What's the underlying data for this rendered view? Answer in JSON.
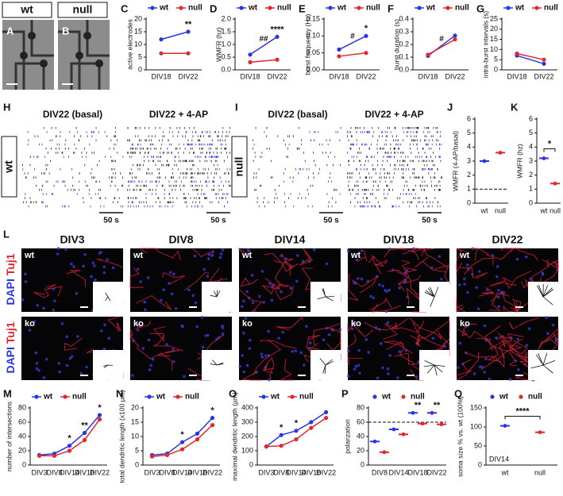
{
  "header": {
    "panel_a": "A",
    "label_a": "wt",
    "panel_b": "B",
    "label_b": "null"
  },
  "rasters": [
    {
      "panel": "H",
      "genotype": "wt",
      "left_title": "DIV22  (basal)",
      "right_title": "DIV22 + 4-AP",
      "scale_left": "50 s",
      "scale_right": "50 s"
    },
    {
      "panel": "I",
      "genotype": "null",
      "left_title": "DIV22  (basal)",
      "right_title": "DIV22 + 4-AP",
      "scale_left": "50 s",
      "scale_right": "50 s"
    }
  ],
  "morphology": {
    "panel": "L",
    "stain_blue": "DAPI",
    "stain_red": "Tuj1",
    "columns": [
      "DIV3",
      "DIV8",
      "DIV14",
      "DIV18",
      "DIV22"
    ],
    "rows": [
      "wt",
      "ko"
    ]
  },
  "chart_data": [
    {
      "type": "line",
      "panel": "C",
      "ylabel": "active electrodes",
      "categories": [
        "DIV18",
        "DIV22"
      ],
      "series": [
        {
          "name": "wt",
          "color": "#2a35e6",
          "values": [
            12,
            15
          ]
        },
        {
          "name": "null",
          "color": "#e5262f",
          "values": [
            6.5,
            6.5
          ]
        }
      ],
      "ylim": [
        0,
        20
      ],
      "yticks": [
        0,
        5,
        10,
        15,
        20
      ],
      "annotations": [
        null,
        "**"
      ],
      "legend": true
    },
    {
      "type": "line",
      "panel": "D",
      "ylabel": "WMFR (hz)",
      "categories": [
        "DIV18",
        "DIV22"
      ],
      "series": [
        {
          "name": "wt",
          "color": "#2a35e6",
          "values": [
            0.6,
            1.3
          ]
        },
        {
          "name": "null",
          "color": "#e5262f",
          "values": [
            0.3,
            0.4
          ]
        }
      ],
      "ylim": [
        0,
        2
      ],
      "yticks": [
        {
          "value": 0,
          "label": "0.0"
        },
        0.5,
        {
          "value": 1,
          "label": "1.0"
        },
        1.5,
        {
          "value": 2,
          "label": "2.0"
        }
      ],
      "annotations": [
        null,
        "****"
      ],
      "trend_annotation": "##",
      "legend": true
    },
    {
      "type": "line",
      "panel": "E",
      "ylabel": "burst frequency (Hz)",
      "categories": [
        "DIV18",
        "DIV22"
      ],
      "series": [
        {
          "name": "wt",
          "color": "#2a35e6",
          "values": [
            0.06,
            0.1
          ]
        },
        {
          "name": "null",
          "color": "#e5262f",
          "values": [
            0.04,
            0.05
          ]
        }
      ],
      "ylim": [
        0,
        0.15
      ],
      "yticks": [
        {
          "value": 0,
          "label": "0.00"
        },
        0.05,
        {
          "value": 0.1,
          "label": "0.10"
        },
        0.15
      ],
      "annotations": [
        null,
        "*"
      ],
      "trend_annotation": "#",
      "legend": true
    },
    {
      "type": "line",
      "panel": "F",
      "ylabel": "burst duration (s)",
      "categories": [
        "DIV18",
        "DIV22"
      ],
      "series": [
        {
          "name": "wt",
          "color": "#2a35e6",
          "values": [
            0.11,
            0.27
          ]
        },
        {
          "name": "null",
          "color": "#e5262f",
          "values": [
            0.12,
            0.24
          ]
        }
      ],
      "ylim": [
        0,
        0.4
      ],
      "yticks": [
        {
          "value": 0,
          "label": "0.0"
        },
        0.1,
        0.2,
        0.3,
        0.4
      ],
      "trend_annotation": "#",
      "legend": true
    },
    {
      "type": "line",
      "panel": "G",
      "ylabel": "intra-burst intervals (s)",
      "categories": [
        "DIV18",
        "DIV22"
      ],
      "series": [
        {
          "name": "wt",
          "color": "#2a35e6",
          "values": [
            7,
            3
          ]
        },
        {
          "name": "null",
          "color": "#e5262f",
          "values": [
            8,
            5
          ]
        }
      ],
      "ylim": [
        0,
        25
      ],
      "yticks": [
        0,
        5,
        10,
        15,
        20,
        25
      ],
      "legend": true
    },
    {
      "type": "dot",
      "panel": "J",
      "ylabel": "WMFR (4-AP/basal)",
      "categories": [
        "wt",
        "null"
      ],
      "series": [
        {
          "name": "wt",
          "color": "#2a35e6",
          "values": [
            3.0,
            null
          ]
        },
        {
          "name": "null",
          "color": "#e5262f",
          "values": [
            null,
            3.6
          ]
        }
      ],
      "ylim": [
        0,
        6
      ],
      "yticks": [
        0,
        1,
        2,
        3,
        4,
        5,
        6
      ],
      "ref_line": 1,
      "legend": false
    },
    {
      "type": "dot",
      "panel": "K",
      "ylabel": "WMFR (hz)",
      "categories": [
        "wt",
        "null"
      ],
      "series": [
        {
          "name": "wt",
          "color": "#2a35e6",
          "values": [
            3.2,
            null
          ]
        },
        {
          "name": "null",
          "color": "#e5262f",
          "values": [
            null,
            1.4
          ]
        }
      ],
      "ylim": [
        0,
        6
      ],
      "yticks": [
        0,
        1,
        2,
        3,
        4,
        5,
        6
      ],
      "bracket_annotation": "*",
      "legend": false
    },
    {
      "type": "line",
      "panel": "M",
      "ylabel": "number of intersections",
      "categories": [
        "DIV3",
        "DIV8",
        "DIV14",
        "DIV18",
        "DIV22"
      ],
      "series": [
        {
          "name": "wt",
          "color": "#2a35e6",
          "values": [
            14,
            16,
            27,
            45,
            70
          ]
        },
        {
          "name": "null",
          "color": "#e5262f",
          "values": [
            13,
            13,
            20,
            35,
            64
          ]
        }
      ],
      "ylim": [
        0,
        80
      ],
      "yticks": [
        0,
        20,
        40,
        60,
        80
      ],
      "annotations": [
        null,
        null,
        "*",
        "**",
        "*"
      ],
      "legend": true
    },
    {
      "type": "line",
      "panel": "N",
      "ylabel": "total dendritic length (x100 µm)",
      "categories": [
        "DIV3",
        "DIV8",
        "DIV14",
        "DIV18",
        "DIV22"
      ],
      "series": [
        {
          "name": "wt",
          "color": "#2a35e6",
          "values": [
            3.5,
            4,
            8,
            11,
            16.5
          ]
        },
        {
          "name": "null",
          "color": "#e5262f",
          "values": [
            3,
            3.5,
            5.5,
            9,
            14
          ]
        }
      ],
      "ylim": [
        0,
        20
      ],
      "yticks": [
        0,
        5,
        10,
        15,
        20
      ],
      "annotations": [
        null,
        null,
        "*",
        null,
        "*"
      ],
      "legend": true
    },
    {
      "type": "line",
      "panel": "O",
      "ylabel": "maximal dendritic length (µm)",
      "categories": [
        "DIV3",
        "DIV8",
        "DIV14",
        "DIV18",
        "DIV22"
      ],
      "series": [
        {
          "name": "wt",
          "color": "#2a35e6",
          "values": [
            130,
            210,
            240,
            300,
            370
          ]
        },
        {
          "name": "null",
          "color": "#e5262f",
          "values": [
            130,
            135,
            180,
            260,
            330
          ]
        }
      ],
      "ylim": [
        0,
        400
      ],
      "yticks": [
        0,
        100,
        200,
        300,
        400
      ],
      "annotations": [
        null,
        "*",
        "*",
        null,
        null
      ],
      "legend": true
    },
    {
      "type": "dot",
      "panel": "P",
      "ylabel": "polarization",
      "categories": [
        "DIV8",
        "DIV14",
        "DIV18",
        "DIV22"
      ],
      "series": [
        {
          "name": "wt",
          "color": "#2a35e6",
          "values": [
            33,
            50,
            73,
            73
          ]
        },
        {
          "name": "null",
          "color": "#e5262f",
          "values": [
            18,
            43,
            58,
            57
          ]
        }
      ],
      "ylim": [
        0,
        80
      ],
      "yticks": [
        0,
        20,
        40,
        60,
        80
      ],
      "ref_line": 60,
      "annotations": [
        null,
        null,
        "**",
        "**"
      ],
      "legend": true
    },
    {
      "type": "dot",
      "panel": "Q",
      "ylabel": "soma size % vs. wt (100%)",
      "categories": [
        "wt",
        "null"
      ],
      "series": [
        {
          "name": "wt",
          "color": "#2a35e6",
          "values": [
            103,
            null
          ]
        },
        {
          "name": "null",
          "color": "#e5262f",
          "values": [
            null,
            86
          ]
        }
      ],
      "ylim": [
        0,
        150
      ],
      "yticks": [
        0,
        50,
        100,
        150
      ],
      "bracket_annotation": "****",
      "note": "DIV14",
      "legend": true
    }
  ]
}
